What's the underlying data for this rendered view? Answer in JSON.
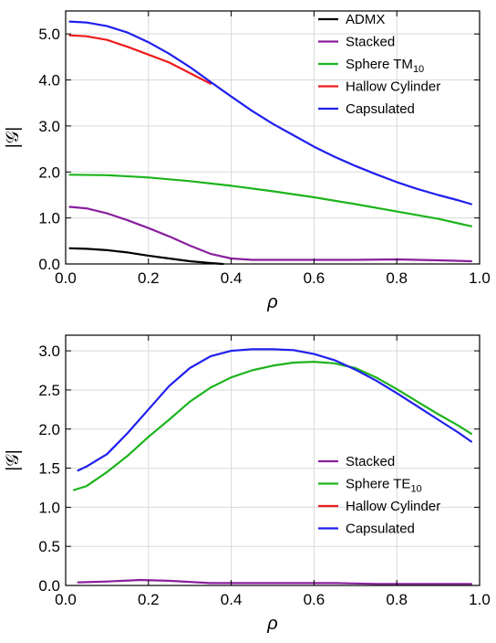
{
  "chart_data": [
    {
      "type": "line",
      "xlabel": "ρ",
      "ylabel": "|𝒢|",
      "xlim": [
        0.0,
        1.0
      ],
      "ylim": [
        0.0,
        5.5
      ],
      "xticks": [
        "0.0",
        "0.2",
        "0.4",
        "0.6",
        "0.8",
        "1.0"
      ],
      "yticks": [
        "0.0",
        "1.0",
        "2.0",
        "3.0",
        "4.0",
        "5.0"
      ],
      "grid": true,
      "legend_position": "top-right",
      "series": [
        {
          "name": "ADMX",
          "color": "#000000",
          "x": [
            0.01,
            0.05,
            0.1,
            0.15,
            0.2,
            0.25,
            0.3,
            0.35,
            0.38
          ],
          "y": [
            0.34,
            0.33,
            0.3,
            0.25,
            0.18,
            0.12,
            0.06,
            0.02,
            0.0
          ]
        },
        {
          "name": "Stacked",
          "color": "#8a1f9e",
          "x": [
            0.01,
            0.05,
            0.1,
            0.15,
            0.2,
            0.25,
            0.3,
            0.35,
            0.4,
            0.45,
            0.5,
            0.6,
            0.7,
            0.8,
            0.9,
            0.98
          ],
          "y": [
            1.24,
            1.21,
            1.1,
            0.95,
            0.78,
            0.6,
            0.4,
            0.22,
            0.12,
            0.09,
            0.09,
            0.09,
            0.09,
            0.1,
            0.08,
            0.06
          ]
        },
        {
          "name": "Sphere TM",
          "name_subscript": "10",
          "color": "#1db31d",
          "x": [
            0.01,
            0.1,
            0.2,
            0.3,
            0.4,
            0.5,
            0.6,
            0.7,
            0.8,
            0.9,
            0.98
          ],
          "y": [
            1.94,
            1.93,
            1.88,
            1.8,
            1.7,
            1.58,
            1.45,
            1.3,
            1.14,
            0.98,
            0.82
          ]
        },
        {
          "name": "Hallow Cylinder",
          "color": "#ee1c1c",
          "x": [
            0.01,
            0.05,
            0.1,
            0.15,
            0.2,
            0.25,
            0.3,
            0.35
          ],
          "y": [
            4.97,
            4.95,
            4.87,
            4.72,
            4.55,
            4.38,
            4.15,
            3.92
          ]
        },
        {
          "name": "Capsulated",
          "color": "#1f1fee",
          "x": [
            0.01,
            0.05,
            0.1,
            0.15,
            0.2,
            0.25,
            0.3,
            0.35,
            0.4,
            0.45,
            0.5,
            0.55,
            0.6,
            0.65,
            0.7,
            0.75,
            0.8,
            0.85,
            0.9,
            0.95,
            0.98
          ],
          "y": [
            5.27,
            5.25,
            5.17,
            5.03,
            4.82,
            4.57,
            4.28,
            3.96,
            3.64,
            3.33,
            3.05,
            2.8,
            2.55,
            2.33,
            2.13,
            1.95,
            1.78,
            1.63,
            1.5,
            1.38,
            1.3
          ]
        }
      ]
    },
    {
      "type": "line",
      "xlabel": "ρ",
      "ylabel": "|𝒢|",
      "xlim": [
        0.0,
        1.0
      ],
      "ylim": [
        0.0,
        3.2
      ],
      "xticks": [
        "0.0",
        "0.2",
        "0.4",
        "0.6",
        "0.8",
        "1.0"
      ],
      "yticks": [
        "0.0",
        "0.5",
        "1.0",
        "1.5",
        "2.0",
        "2.5",
        "3.0"
      ],
      "grid": true,
      "legend_position": "bottom-right",
      "series": [
        {
          "name": "Stacked",
          "color": "#8a1f9e",
          "x": [
            0.03,
            0.1,
            0.18,
            0.25,
            0.35,
            0.45,
            0.55,
            0.65,
            0.75,
            0.85,
            0.98
          ],
          "y": [
            0.04,
            0.05,
            0.07,
            0.06,
            0.03,
            0.03,
            0.03,
            0.03,
            0.02,
            0.02,
            0.02
          ]
        },
        {
          "name": "Sphere TE",
          "name_subscript": "10",
          "color": "#1db31d",
          "x": [
            0.02,
            0.05,
            0.1,
            0.15,
            0.2,
            0.25,
            0.3,
            0.35,
            0.4,
            0.45,
            0.5,
            0.55,
            0.6,
            0.65,
            0.7,
            0.75,
            0.8,
            0.85,
            0.9,
            0.95,
            0.98
          ],
          "y": [
            1.22,
            1.27,
            1.45,
            1.66,
            1.9,
            2.12,
            2.35,
            2.53,
            2.66,
            2.75,
            2.81,
            2.85,
            2.86,
            2.84,
            2.78,
            2.66,
            2.51,
            2.35,
            2.19,
            2.04,
            1.94
          ]
        },
        {
          "name": "Hallow Cylinder",
          "color": "#ee1c1c",
          "x": [],
          "y": []
        },
        {
          "name": "Capsulated",
          "color": "#1f1fee",
          "x": [
            0.03,
            0.05,
            0.1,
            0.15,
            0.2,
            0.25,
            0.3,
            0.35,
            0.4,
            0.45,
            0.5,
            0.55,
            0.6,
            0.65,
            0.7,
            0.75,
            0.8,
            0.85,
            0.9,
            0.95,
            0.98
          ],
          "y": [
            1.47,
            1.52,
            1.68,
            1.95,
            2.25,
            2.55,
            2.78,
            2.93,
            3.0,
            3.02,
            3.02,
            3.01,
            2.96,
            2.88,
            2.76,
            2.62,
            2.46,
            2.29,
            2.12,
            1.95,
            1.84
          ]
        }
      ]
    }
  ]
}
